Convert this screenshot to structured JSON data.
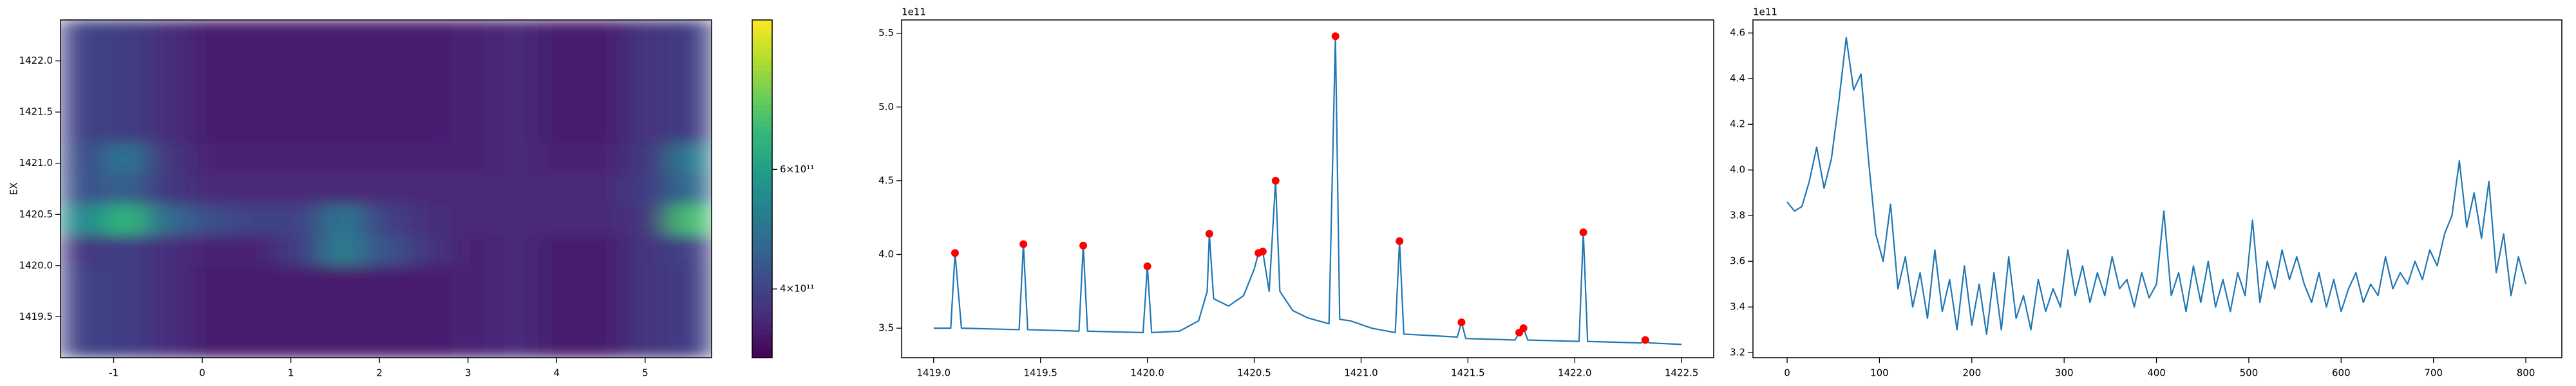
{
  "chart_data": [
    {
      "type": "heatmap",
      "ylabel": "EX",
      "colormap": "viridis",
      "x_edges": [
        -1.6,
        -1.11,
        -0.62,
        -0.13,
        0.36,
        0.85,
        1.34,
        1.83,
        2.32,
        2.81,
        3.3,
        3.79,
        4.28,
        4.77,
        5.26,
        5.75
      ],
      "y_edges": [
        1419.1,
        1419.4,
        1419.7,
        1420.0,
        1420.3,
        1420.6,
        1420.9,
        1421.2,
        1421.5,
        1421.8,
        1422.1,
        1422.4
      ],
      "z": [
        [
          400000000000.0,
          390000000000.0,
          360000000000.0,
          330000000000.0,
          330000000000.0,
          330000000000.0,
          330000000000.0,
          330000000000.0,
          330000000000.0,
          340000000000.0,
          350000000000.0,
          330000000000.0,
          330000000000.0,
          370000000000.0,
          390000000000.0
        ],
        [
          400000000000.0,
          390000000000.0,
          360000000000.0,
          330000000000.0,
          330000000000.0,
          330000000000.0,
          330000000000.0,
          330000000000.0,
          330000000000.0,
          340000000000.0,
          350000000000.0,
          330000000000.0,
          330000000000.0,
          370000000000.0,
          390000000000.0
        ],
        [
          400000000000.0,
          390000000000.0,
          360000000000.0,
          330000000000.0,
          330000000000.0,
          330000000000.0,
          330000000000.0,
          330000000000.0,
          330000000000.0,
          340000000000.0,
          350000000000.0,
          330000000000.0,
          330000000000.0,
          370000000000.0,
          390000000000.0
        ],
        [
          380000000000.0,
          390000000000.0,
          360000000000.0,
          340000000000.0,
          340000000000.0,
          390000000000.0,
          520000000000.0,
          430000000000.0,
          370000000000.0,
          340000000000.0,
          350000000000.0,
          330000000000.0,
          330000000000.0,
          370000000000.0,
          400000000000.0
        ],
        [
          550000000000.0,
          650000000000.0,
          480000000000.0,
          420000000000.0,
          400000000000.0,
          400000000000.0,
          500000000000.0,
          400000000000.0,
          360000000000.0,
          350000000000.0,
          350000000000.0,
          350000000000.0,
          350000000000.0,
          370000000000.0,
          680000000000.0
        ],
        [
          430000000000.0,
          460000000000.0,
          380000000000.0,
          350000000000.0,
          350000000000.0,
          350000000000.0,
          350000000000.0,
          350000000000.0,
          350000000000.0,
          350000000000.0,
          350000000000.0,
          350000000000.0,
          350000000000.0,
          390000000000.0,
          480000000000.0
        ],
        [
          420000000000.0,
          500000000000.0,
          370000000000.0,
          340000000000.0,
          340000000000.0,
          340000000000.0,
          340000000000.0,
          340000000000.0,
          340000000000.0,
          340000000000.0,
          350000000000.0,
          340000000000.0,
          340000000000.0,
          380000000000.0,
          520000000000.0
        ],
        [
          400000000000.0,
          390000000000.0,
          360000000000.0,
          330000000000.0,
          330000000000.0,
          330000000000.0,
          330000000000.0,
          330000000000.0,
          330000000000.0,
          340000000000.0,
          350000000000.0,
          330000000000.0,
          330000000000.0,
          370000000000.0,
          390000000000.0
        ],
        [
          400000000000.0,
          390000000000.0,
          360000000000.0,
          330000000000.0,
          330000000000.0,
          330000000000.0,
          330000000000.0,
          330000000000.0,
          330000000000.0,
          340000000000.0,
          350000000000.0,
          330000000000.0,
          330000000000.0,
          370000000000.0,
          390000000000.0
        ],
        [
          400000000000.0,
          390000000000.0,
          360000000000.0,
          330000000000.0,
          330000000000.0,
          330000000000.0,
          330000000000.0,
          330000000000.0,
          330000000000.0,
          340000000000.0,
          350000000000.0,
          330000000000.0,
          330000000000.0,
          370000000000.0,
          390000000000.0
        ],
        [
          400000000000.0,
          390000000000.0,
          360000000000.0,
          330000000000.0,
          330000000000.0,
          330000000000.0,
          330000000000.0,
          330000000000.0,
          330000000000.0,
          340000000000.0,
          350000000000.0,
          330000000000.0,
          330000000000.0,
          370000000000.0,
          390000000000.0
        ]
      ],
      "zlim": [
        285000000000.0,
        850000000000.0
      ],
      "xlim": [
        -1.6,
        5.75
      ],
      "ylim": [
        1419.1,
        1422.4
      ],
      "xticks": [
        -1,
        0,
        1,
        2,
        3,
        4,
        5
      ],
      "yticks": [
        1419.5,
        {
          "value": 1420,
          "label": "1420.0"
        },
        1420.5,
        {
          "value": 1421,
          "label": "1421.0"
        },
        1421.5,
        {
          "value": 1422,
          "label": "1422.0"
        }
      ],
      "colorbar_ticks": [
        {
          "value": 400000000000.0,
          "label": "4×10¹¹"
        },
        {
          "value": 600000000000.0,
          "label": "6×10¹¹"
        }
      ]
    },
    {
      "type": "line",
      "offset_text": "1e11",
      "x": [
        1419.0,
        1419.08,
        1419.1,
        1419.13,
        1419.4,
        1419.42,
        1419.44,
        1419.68,
        1419.7,
        1419.72,
        1419.98,
        1420.0,
        1420.02,
        1420.15,
        1420.24,
        1420.28,
        1420.29,
        1420.31,
        1420.38,
        1420.45,
        1420.5,
        1420.52,
        1420.54,
        1420.57,
        1420.6,
        1420.62,
        1420.68,
        1420.75,
        1420.85,
        1420.88,
        1420.9,
        1420.95,
        1421.05,
        1421.16,
        1421.18,
        1421.2,
        1421.45,
        1421.47,
        1421.49,
        1421.72,
        1421.74,
        1421.76,
        1421.78,
        1422.02,
        1422.04,
        1422.06,
        1422.31,
        1422.33,
        1422.35,
        1422.5
      ],
      "series": [
        {
          "color": "#1f77b4",
          "values": [
            3.5,
            3.5,
            4.01,
            3.5,
            3.49,
            4.07,
            3.49,
            3.48,
            4.06,
            3.48,
            3.47,
            3.92,
            3.47,
            3.48,
            3.55,
            3.75,
            4.14,
            3.7,
            3.65,
            3.72,
            3.9,
            4.01,
            4.02,
            3.75,
            4.5,
            3.75,
            3.62,
            3.57,
            3.53,
            5.48,
            3.56,
            3.55,
            3.5,
            3.47,
            4.09,
            3.46,
            3.44,
            3.54,
            3.43,
            3.42,
            3.47,
            3.5,
            3.42,
            3.41,
            4.15,
            3.41,
            3.4,
            3.42,
            3.4,
            3.39
          ]
        }
      ],
      "peaks": {
        "color": "red",
        "x": [
          1419.1,
          1419.42,
          1419.7,
          1420.0,
          1420.29,
          1420.52,
          1420.54,
          1420.6,
          1420.88,
          1421.18,
          1421.47,
          1421.74,
          1421.76,
          1422.04,
          1422.33
        ],
        "values": [
          4.01,
          4.07,
          4.06,
          3.92,
          4.14,
          4.01,
          4.02,
          4.5,
          5.48,
          4.09,
          3.54,
          3.47,
          3.5,
          4.15,
          3.42
        ]
      },
      "xlim": [
        1418.85,
        1422.65
      ],
      "ylim": [
        3.3,
        5.59
      ],
      "xticks": [
        {
          "value": 1419,
          "label": "1419.0"
        },
        1419.5,
        {
          "value": 1420,
          "label": "1420.0"
        },
        1420.5,
        {
          "value": 1421,
          "label": "1421.0"
        },
        1421.5,
        {
          "value": 1422,
          "label": "1422.0"
        },
        1422.5
      ],
      "yticks": [
        3.5,
        {
          "value": 4,
          "label": "4.0"
        },
        4.5,
        {
          "value": 5,
          "label": "5.0"
        },
        5.5
      ]
    },
    {
      "type": "line",
      "offset_text": "1e11",
      "x": [
        0,
        8,
        16,
        24,
        32,
        40,
        48,
        56,
        64,
        72,
        80,
        88,
        96,
        104,
        112,
        120,
        128,
        136,
        144,
        152,
        160,
        168,
        176,
        184,
        192,
        200,
        208,
        216,
        224,
        232,
        240,
        248,
        256,
        264,
        272,
        280,
        288,
        296,
        304,
        312,
        320,
        328,
        336,
        344,
        352,
        360,
        368,
        376,
        384,
        392,
        400,
        408,
        416,
        424,
        432,
        440,
        448,
        456,
        464,
        472,
        480,
        488,
        496,
        504,
        512,
        520,
        528,
        536,
        544,
        552,
        560,
        568,
        576,
        584,
        592,
        600,
        608,
        616,
        624,
        632,
        640,
        648,
        656,
        664,
        672,
        680,
        688,
        696,
        704,
        712,
        720,
        728,
        736,
        744,
        752,
        760,
        768,
        776,
        784,
        792,
        800
      ],
      "series": [
        {
          "color": "#1f77b4",
          "values": [
            3.86,
            3.82,
            3.84,
            3.95,
            4.1,
            3.92,
            4.05,
            4.3,
            4.58,
            4.35,
            4.42,
            4.05,
            3.72,
            3.6,
            3.85,
            3.48,
            3.62,
            3.4,
            3.55,
            3.35,
            3.65,
            3.38,
            3.52,
            3.3,
            3.58,
            3.32,
            3.5,
            3.28,
            3.55,
            3.3,
            3.62,
            3.35,
            3.45,
            3.3,
            3.52,
            3.38,
            3.48,
            3.4,
            3.65,
            3.45,
            3.58,
            3.42,
            3.55,
            3.45,
            3.62,
            3.48,
            3.52,
            3.4,
            3.55,
            3.44,
            3.5,
            3.82,
            3.45,
            3.55,
            3.38,
            3.58,
            3.42,
            3.6,
            3.4,
            3.52,
            3.38,
            3.55,
            3.45,
            3.78,
            3.42,
            3.6,
            3.48,
            3.65,
            3.52,
            3.62,
            3.5,
            3.42,
            3.55,
            3.4,
            3.52,
            3.38,
            3.48,
            3.55,
            3.42,
            3.5,
            3.45,
            3.62,
            3.48,
            3.55,
            3.5,
            3.6,
            3.52,
            3.65,
            3.58,
            3.72,
            3.8,
            4.04,
            3.75,
            3.9,
            3.7,
            3.95,
            3.55,
            3.72,
            3.45,
            3.62,
            3.5
          ]
        }
      ],
      "xlim": [
        -37,
        839
      ],
      "ylim": [
        3.178,
        4.657
      ],
      "xticks": [
        0,
        100,
        200,
        300,
        400,
        500,
        600,
        700,
        800
      ],
      "yticks": [
        3.2,
        3.4,
        3.6,
        3.8,
        {
          "value": 4,
          "label": "4.0"
        },
        4.2,
        4.4,
        4.6
      ]
    }
  ]
}
